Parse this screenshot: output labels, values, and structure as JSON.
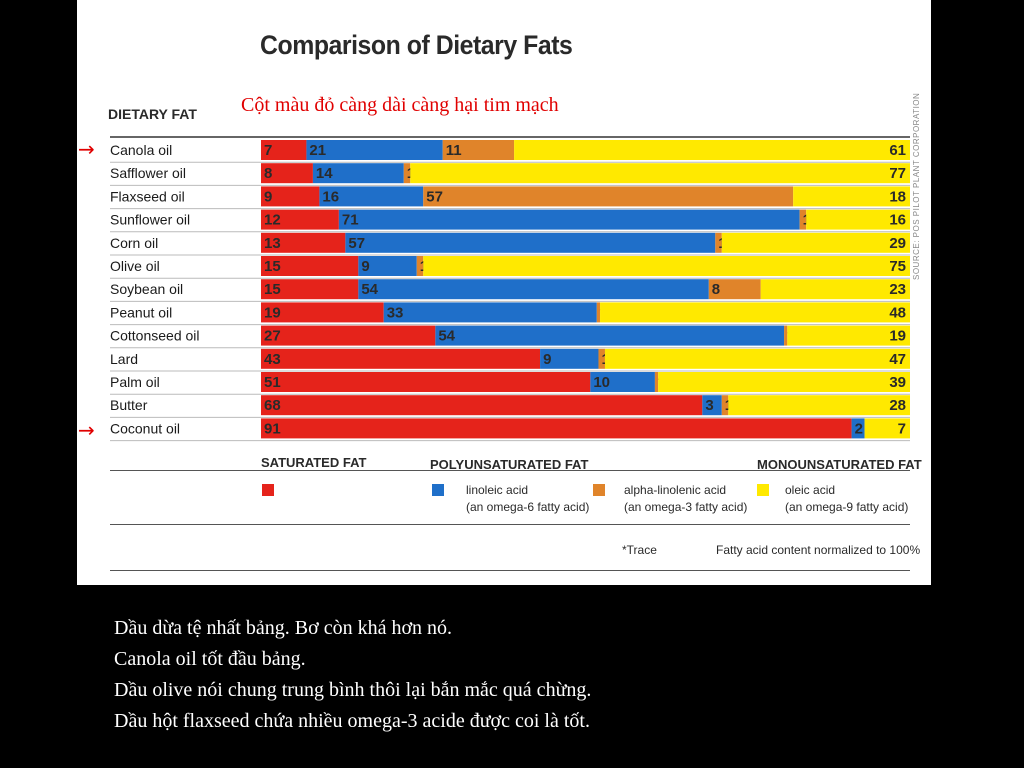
{
  "chart_data": {
    "type": "bar",
    "stacked": true,
    "orientation": "horizontal",
    "title": "Comparison of Dietary Fats",
    "category_header": "DIETARY FAT",
    "categories": [
      "Canola oil",
      "Safflower oil",
      "Flaxseed oil",
      "Sunflower oil",
      "Corn oil",
      "Olive oil",
      "Soybean oil",
      "Peanut oil",
      "Cottonseed oil",
      "Lard",
      "Palm oil",
      "Butter",
      "Coconut oil"
    ],
    "series": [
      {
        "name": "SATURATED FAT",
        "color": "#e5231b",
        "values": [
          7,
          8,
          9,
          12,
          13,
          15,
          15,
          19,
          27,
          43,
          51,
          68,
          91
        ],
        "labels": [
          "7",
          "8",
          "9",
          "12",
          "13",
          "15",
          "15",
          "19",
          "27",
          "43",
          "51",
          "68",
          "91"
        ]
      },
      {
        "name": "linoleic acid",
        "color": "#1f6fc9",
        "values": [
          21,
          14,
          16,
          71,
          57,
          9,
          54,
          33,
          54,
          9,
          10,
          3,
          2
        ],
        "labels": [
          "21",
          "14",
          "16",
          "71",
          "57",
          "9",
          "54",
          "33",
          "54",
          "9",
          "10",
          "3",
          "2"
        ]
      },
      {
        "name": "alpha-linolenic acid",
        "color": "#e0842a",
        "values": [
          11,
          1,
          57,
          1,
          1,
          1,
          8,
          0.5,
          0.5,
          1,
          0.5,
          1,
          0
        ],
        "labels": [
          "11",
          "1",
          "57",
          "1",
          "1",
          "1",
          "8",
          "*",
          "*",
          "1",
          "*",
          "1",
          ""
        ]
      },
      {
        "name": "oleic acid",
        "color": "#ffe900",
        "values": [
          61,
          77,
          18,
          16,
          29,
          75,
          23,
          48,
          19,
          47,
          39,
          28,
          7
        ],
        "labels": [
          "61",
          "77",
          "18",
          "16",
          "29",
          "75",
          "23",
          "48",
          "19",
          "47",
          "39",
          "28",
          "7"
        ]
      }
    ],
    "legend": {
      "groups": [
        {
          "heading": "SATURATED FAT"
        },
        {
          "heading": "POLYUNSATURATED FAT"
        },
        {
          "heading": "MONOUNSATURATED FAT"
        }
      ],
      "items": [
        {
          "name": "linoleic acid",
          "note": "(an omega-6 fatty acid)"
        },
        {
          "name": "alpha-linolenic acid",
          "note": "(an omega-3 fatty acid)"
        },
        {
          "name": "oleic acid",
          "note": "(an omega-9 fatty acid)"
        }
      ],
      "placement": "bottom"
    },
    "xlim": [
      0,
      100
    ],
    "grid": false
  },
  "annotation": "Cột màu đỏ càng dài càng hại tim mạch",
  "arrow_glyph": "→",
  "trace_note": "*Trace",
  "norm_note": "Fatty acid content normalized to 100%",
  "source": "SOURCE: POS PILOT PLANT CORPORATION",
  "notes": [
    "Dầu dừa tệ nhất bảng. Bơ còn khá hơn nó.",
    "Canola oil tốt đầu bảng.",
    "Dầu olive nói chung trung bình thôi lại bắn mắc quá chừng.",
    "Dầu hột flaxseed chứa nhiều omega-3 acide được coi là tốt."
  ]
}
